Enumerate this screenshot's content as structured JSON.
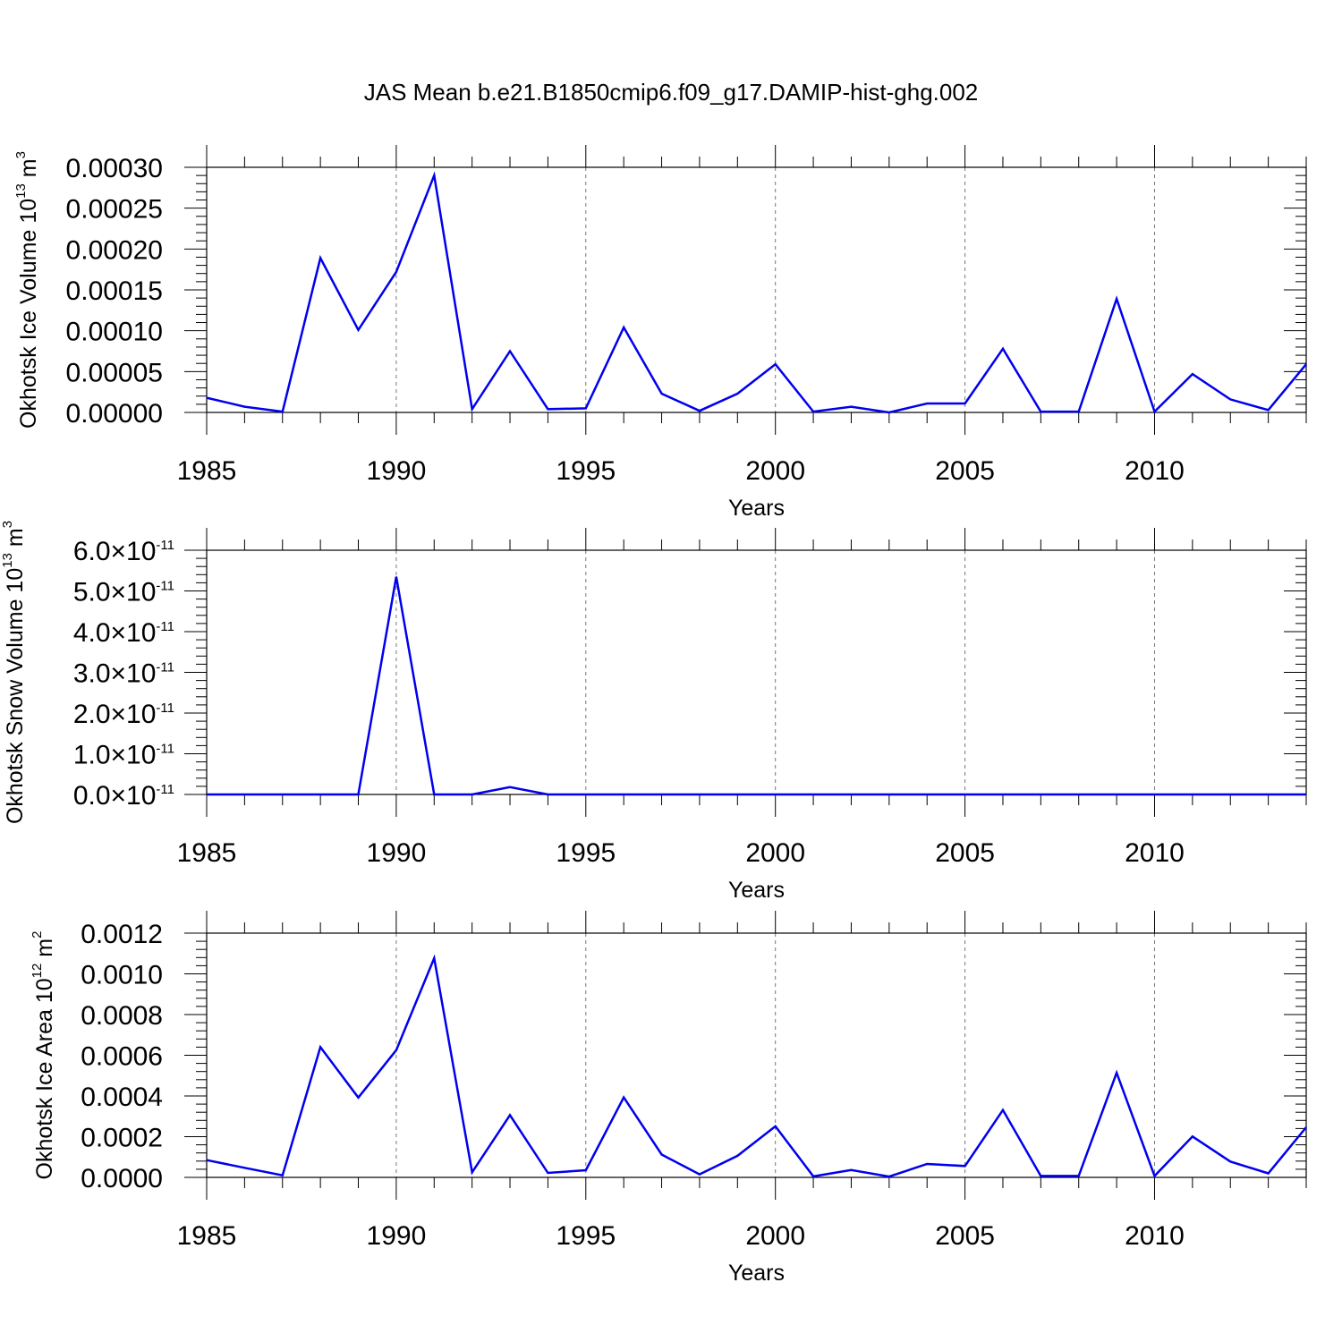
{
  "title": "JAS Mean b.e21.B1850cmip6.f09_g17.DAMIP-hist-ghg.002",
  "chart_data": [
    {
      "type": "line",
      "title": "",
      "xlabel": "Years",
      "ylabel": "Okhotsk Ice Volume 10",
      "ylabel_exp": "13",
      "ylabel_unit": "m",
      "ylabel_unit_exp": "3",
      "x": [
        1985,
        1986,
        1987,
        1988,
        1989,
        1990,
        1991,
        1992,
        1993,
        1994,
        1995,
        1996,
        1997,
        1998,
        1999,
        2000,
        2001,
        2002,
        2003,
        2004,
        2005,
        2006,
        2007,
        2008,
        2009,
        2010,
        2011,
        2012,
        2013,
        2014
      ],
      "values": [
        1.8e-05,
        7e-06,
        1e-06,
        0.000189,
        0.000101,
        0.000172,
        0.00029,
        4e-06,
        7.5e-05,
        4e-06,
        5e-06,
        0.000104,
        2.3e-05,
        2e-06,
        2.3e-05,
        5.9e-05,
        1e-06,
        7e-06,
        0.0,
        1.1e-05,
        1.1e-05,
        7.8e-05,
        1e-06,
        1e-06,
        0.000139,
        1e-06,
        4.7e-05,
        1.6e-05,
        3e-06,
        5.9e-05
      ],
      "xlim": [
        1985,
        2014
      ],
      "ylim": [
        0,
        0.0003
      ],
      "xticks": [
        "1985",
        "1990",
        "1995",
        "2000",
        "2005",
        "2010"
      ],
      "yticks": [
        "0.00000",
        "0.00005",
        "0.00010",
        "0.00015",
        "0.00020",
        "0.00025",
        "0.00030"
      ],
      "line_color": "#0000ee",
      "grid": "vertical dashed at major x ticks"
    },
    {
      "type": "line",
      "title": "",
      "xlabel": "Years",
      "ylabel": "Okhotsk Snow Volume 10",
      "ylabel_exp": "13",
      "ylabel_unit": "m",
      "ylabel_unit_exp": "3",
      "x": [
        1985,
        1986,
        1987,
        1988,
        1989,
        1990,
        1991,
        1992,
        1993,
        1994,
        1995,
        1996,
        1997,
        1998,
        1999,
        2000,
        2001,
        2002,
        2003,
        2004,
        2005,
        2006,
        2007,
        2008,
        2009,
        2010,
        2011,
        2012,
        2013,
        2014
      ],
      "values": [
        0,
        0,
        0,
        0,
        0,
        5.35e-11,
        0,
        0,
        1.8e-12,
        0,
        0,
        0,
        0,
        0,
        0,
        0,
        0,
        0,
        0,
        0,
        0,
        0,
        0,
        0,
        0,
        0,
        0,
        0,
        0,
        0
      ],
      "xlim": [
        1985,
        2014
      ],
      "ylim": [
        0,
        6e-11
      ],
      "xticks": [
        "1985",
        "1990",
        "1995",
        "2000",
        "2005",
        "2010"
      ],
      "yticks": [
        "0.0",
        "1.0",
        "2.0",
        "3.0",
        "4.0",
        "5.0",
        "6.0"
      ],
      "ytick_multiplier": "×10",
      "ytick_exp": "-11",
      "line_color": "#0000ee",
      "grid": "vertical dashed at major x ticks"
    },
    {
      "type": "line",
      "title": "",
      "xlabel": "Years",
      "ylabel": "Okhotsk Ice Area 10",
      "ylabel_exp": "12",
      "ylabel_unit": "m",
      "ylabel_unit_exp": "2",
      "x": [
        1985,
        1986,
        1987,
        1988,
        1989,
        1990,
        1991,
        1992,
        1993,
        1994,
        1995,
        1996,
        1997,
        1998,
        1999,
        2000,
        2001,
        2002,
        2003,
        2004,
        2005,
        2006,
        2007,
        2008,
        2009,
        2010,
        2011,
        2012,
        2013,
        2014
      ],
      "values": [
        8.5e-05,
        4.7e-05,
        1e-05,
        0.00064,
        0.000392,
        0.000625,
        0.001077,
        2.5e-05,
        0.000306,
        2.2e-05,
        3.5e-05,
        0.000393,
        0.000112,
        1.5e-05,
        0.000106,
        0.000251,
        5e-06,
        3.6e-05,
        4e-06,
        6.6e-05,
        5.6e-05,
        0.000331,
        7e-06,
        7e-06,
        0.000514,
        7e-06,
        0.000201,
        7.8e-05,
        2e-05,
        0.000246
      ],
      "xlim": [
        1985,
        2014
      ],
      "ylim": [
        0,
        0.0012
      ],
      "xticks": [
        "1985",
        "1990",
        "1995",
        "2000",
        "2005",
        "2010"
      ],
      "yticks": [
        "0.0000",
        "0.0002",
        "0.0004",
        "0.0006",
        "0.0008",
        "0.0010",
        "0.0012"
      ],
      "line_color": "#0000ee",
      "grid": "vertical dashed at major x ticks"
    }
  ]
}
